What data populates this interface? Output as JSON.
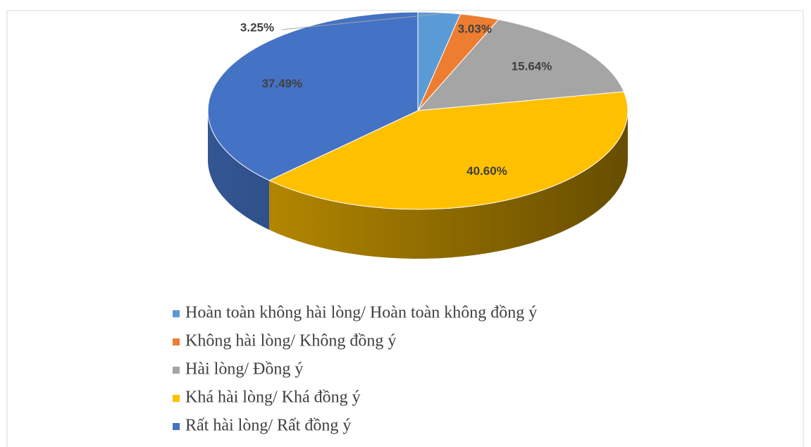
{
  "chart_data": {
    "type": "pie",
    "categories": [
      "Hoàn toàn không hài lòng/ Hoàn toàn không đồng ý",
      "Không hài lòng/ Không đồng ý",
      "Hài lòng/ Đồng ý",
      "Khá hài lòng/ Khá đồng ý",
      "Rất hài lòng/ Rất đồng ý"
    ],
    "values": [
      3.25,
      3.03,
      15.64,
      40.6,
      37.49
    ],
    "value_labels": [
      "3.25%",
      "3.03%",
      "15.64%",
      "40.60%",
      "37.49%"
    ],
    "colors": [
      "#5b9bd5",
      "#ed7d31",
      "#a5a5a5",
      "#ffc000",
      "#4472c4"
    ],
    "legend": "bottom"
  }
}
